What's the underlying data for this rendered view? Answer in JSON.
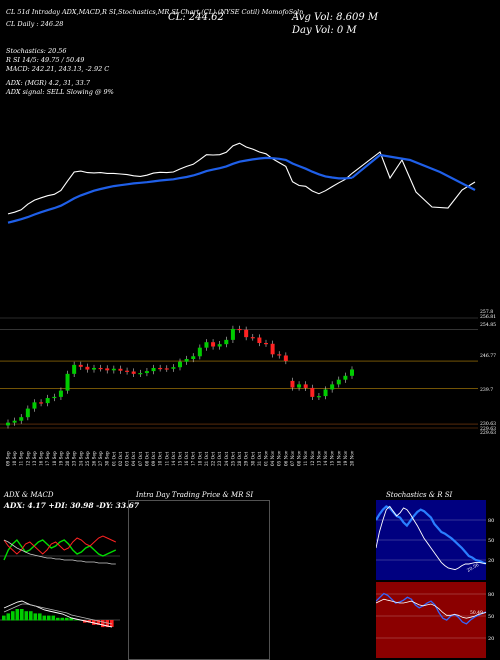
{
  "header": {
    "line1": "CL 51d Intraday ADX,MACD,R      SI,Stochastics,MR      SI Chart (CL)       (NYSE Cotil) MomofoSoln",
    "line2": "CL Daily : 246.28",
    "close_label": "CL: 244.62",
    "avg_vol": "Avg Vol: 8.609 M",
    "day_vol": "Day Vol: 0   M"
  },
  "info": {
    "stochastics": "Stochastics: 20.56",
    "rsi": "R            SI 14/5: 49.75 / 50.49",
    "macd": "MACD: 242.21, 243.13, -2.92  C",
    "adx": "ADX:                       (MGR) 4.2, 31, 33.7",
    "adx_signal": "ADX  signal: SELL  Slowing @ 9%"
  },
  "price_axis": [
    "257.8",
    "256.81",
    "254.85",
    "246.77",
    "239.7",
    "230.63",
    "229.63",
    "229.63"
  ],
  "dates": [
    "09 Sep",
    "10 Sep",
    "11 Sep",
    "12 Sep",
    "13 Sep",
    "16 Sep",
    "17 Sep",
    "18 Sep",
    "19 Sep",
    "20 Sep",
    "23 Sep",
    "24 Sep",
    "25 Sep",
    "26 Sep",
    "27 Sep",
    "30 Sep",
    "01 Oct",
    "02 Oct",
    "03 Oct",
    "04 Oct",
    "07 Oct",
    "08 Oct",
    "09 Oct",
    "10 Oct",
    "11 Oct",
    "14 Oct",
    "15 Oct",
    "16 Oct",
    "17 Oct",
    "18 Oct",
    "21 Oct",
    "22 Oct",
    "23 Oct",
    "24 Oct",
    "25 Oct",
    "28 Oct",
    "29 Oct",
    "30 Oct",
    "31 Oct",
    "01 Nov",
    "04 Nov",
    "05 Nov",
    "06 Nov",
    "07 Nov",
    "08 Nov",
    "11 Nov",
    "12 Nov",
    "13 Nov",
    "14 Nov",
    "15 Nov",
    "18 Nov",
    "19 Nov",
    "20 Nov"
  ],
  "panels": {
    "adx_title": "ADX  & MACD",
    "adx_values": "ADX: 4.17  +DI: 30.98  -DY: 33.67",
    "intraday_title": "Intra  Day Trading Price  & MR                    SI",
    "stoch_title": "Stochastics & R                    SI",
    "stoch_axis": [
      "80",
      "50",
      "20"
    ],
    "rsi_axis": [
      "80",
      "50",
      "20"
    ],
    "stoch_val": "20.56",
    "rsi_val": "50.49"
  },
  "colors": {
    "up": "#00cc00",
    "down": "#ff2222",
    "ema": "#1f5fe8",
    "price_line": "#ffffff",
    "rsi_bg": "#8b0000",
    "stoch_bg": "#000080"
  },
  "chart_data": {
    "type": "candlestick",
    "x": [
      "09 Sep",
      "10 Sep",
      "11 Sep",
      "12 Sep",
      "13 Sep",
      "16 Sep",
      "17 Sep",
      "18 Sep",
      "19 Sep",
      "20 Sep",
      "23 Sep",
      "24 Sep",
      "25 Sep",
      "26 Sep",
      "27 Sep",
      "30 Sep",
      "01 Oct",
      "02 Oct",
      "03 Oct",
      "04 Oct",
      "07 Oct",
      "08 Oct",
      "09 Oct",
      "10 Oct",
      "11 Oct",
      "14 Oct",
      "15 Oct",
      "16 Oct",
      "17 Oct",
      "18 Oct",
      "21 Oct",
      "22 Oct",
      "23 Oct",
      "24 Oct",
      "25 Oct",
      "28 Oct",
      "29 Oct",
      "30 Oct",
      "31 Oct",
      "01 Nov",
      "04 Nov",
      "05 Nov",
      "06 Nov",
      "07 Nov",
      "08 Nov",
      "11 Nov",
      "12 Nov",
      "13 Nov",
      "14 Nov",
      "15 Nov",
      "18 Nov",
      "19 Nov",
      "20 Nov"
    ],
    "open": [
      230.3,
      231.0,
      231.5,
      232.4,
      234.6,
      236.2,
      236.0,
      237.3,
      237.6,
      239.2,
      243.5,
      245.8,
      245.3,
      244.6,
      245.0,
      244.9,
      244.4,
      244.8,
      244.3,
      244.1,
      243.5,
      243.7,
      244.2,
      245.0,
      244.9,
      244.8,
      245.2,
      246.6,
      247.3,
      248.0,
      250.2,
      251.6,
      250.5,
      251.1,
      252.2,
      255.0,
      254.8,
      252.9,
      252.8,
      251.4,
      251.2,
      248.5,
      248.2,
      241.7,
      240.0,
      240.8,
      239.9,
      237.6,
      237.8,
      239.5,
      240.8,
      242.0,
      243.0
    ],
    "close": [
      231.0,
      231.5,
      232.4,
      234.6,
      236.2,
      236.0,
      237.3,
      237.6,
      239.2,
      243.5,
      245.8,
      245.3,
      244.6,
      245.0,
      244.9,
      244.4,
      244.8,
      244.3,
      244.1,
      243.5,
      243.7,
      244.2,
      245.0,
      244.9,
      244.8,
      245.2,
      246.6,
      247.3,
      248.0,
      250.2,
      251.6,
      250.5,
      251.1,
      252.2,
      255.0,
      254.8,
      252.9,
      252.8,
      251.4,
      251.2,
      248.5,
      248.2,
      246.8,
      240.0,
      240.8,
      239.9,
      237.6,
      237.8,
      239.5,
      240.8,
      242.0,
      243.0,
      244.62
    ],
    "ema": [
      227.8,
      228.4,
      229.0,
      229.7,
      230.6,
      231.4,
      232.1,
      232.8,
      233.6,
      234.8,
      236.1,
      237.1,
      237.9,
      238.7,
      239.3,
      239.8,
      240.3,
      240.6,
      240.9,
      241.2,
      241.4,
      241.6,
      241.9,
      242.2,
      242.4,
      242.6,
      243.0,
      243.4,
      243.9,
      244.6,
      245.4,
      245.9,
      246.4,
      247.0,
      247.9,
      248.6,
      249.0,
      249.4,
      249.7,
      249.9,
      249.8,
      249.6,
      249.2,
      248.0,
      247.1,
      246.2,
      245.2,
      244.3,
      243.6,
      243.2,
      242.9,
      242.9,
      243.1
    ],
    "price_line": [
      230.8,
      231.4,
      232.2,
      234.1,
      235.5,
      236.3,
      237.0,
      237.5,
      238.8,
      242.0,
      245.1,
      245.4,
      244.9,
      244.8,
      244.9,
      244.6,
      244.6,
      244.4,
      244.2,
      243.8,
      243.6,
      244.0,
      244.7,
      245.0,
      244.9,
      245.1,
      246.1,
      247.0,
      247.7,
      249.3,
      251.0,
      250.9,
      251.0,
      251.8,
      254.0,
      254.9,
      253.6,
      252.9,
      251.9,
      251.3,
      249.6,
      248.3,
      247.0,
      241.8,
      240.5,
      240.2,
      238.6,
      237.7,
      238.7,
      240.1,
      241.4,
      242.6,
      244.62
    ],
    "ylim": [
      229.63,
      257.8
    ],
    "stochastics": [
      75,
      82,
      88,
      92,
      90,
      85,
      80,
      78,
      72,
      68,
      74,
      80,
      85,
      88,
      86,
      82,
      78,
      70,
      65,
      60,
      58,
      55,
      52,
      48,
      44,
      40,
      35,
      30,
      28,
      25,
      24,
      22,
      20.56
    ],
    "rsi": [
      62,
      66,
      70,
      68,
      64,
      60,
      61,
      63,
      66,
      64,
      58,
      55,
      57,
      60,
      62,
      58,
      50,
      44,
      42,
      46,
      48,
      45,
      40,
      38,
      42,
      45,
      47,
      49,
      50.49
    ],
    "macd_hist": [
      2,
      3,
      4,
      5,
      5,
      4,
      4,
      3,
      3,
      2,
      2,
      2,
      1,
      1,
      1,
      1,
      0,
      0,
      -1,
      -1,
      -2,
      -2,
      -3,
      -3,
      -2.92
    ]
  }
}
